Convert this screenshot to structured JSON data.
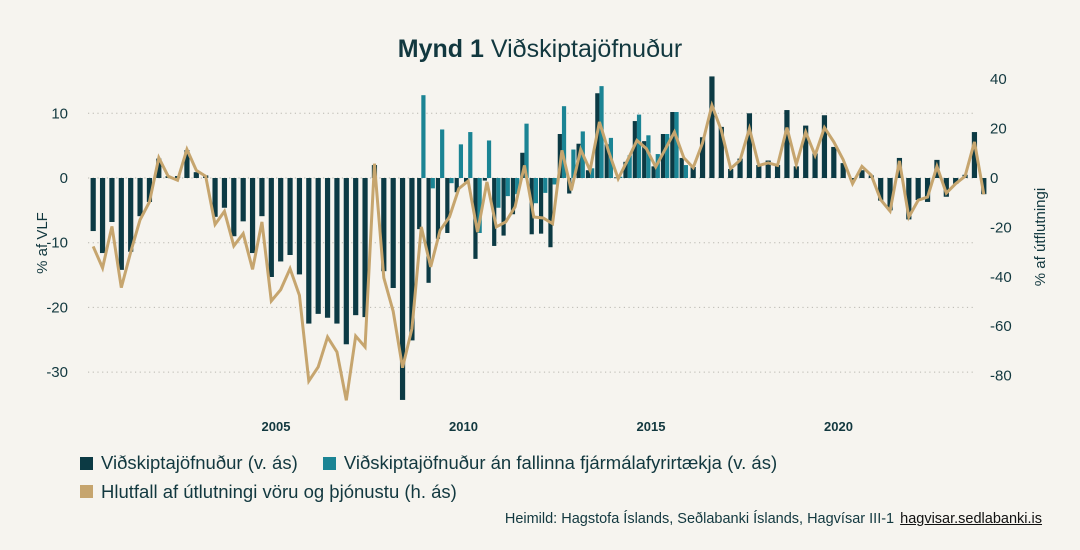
{
  "title": {
    "prefix": "Mynd 1",
    "text": "Viðskiptajöfnuður"
  },
  "colors": {
    "background": "#f6f4ef",
    "series1": "#0c3a44",
    "series2": "#1b8494",
    "series3": "#c6a56e",
    "text": "#12383f"
  },
  "chart_data": {
    "type": "bar+line",
    "title": "Mynd 1 Viðskiptajöfnuður",
    "frequency": "quarterly",
    "start": "2000Q1",
    "end": "2023Q4",
    "x_ticks": [
      "2005",
      "2010",
      "2015",
      "2020"
    ],
    "y_left": {
      "label": "% af VLF",
      "ticks": [
        10,
        0,
        -10,
        -20,
        -30
      ],
      "range": [
        -35,
        15
      ]
    },
    "y_right": {
      "label": "% af útflutningi",
      "ticks": [
        40,
        20,
        0,
        -20,
        -40,
        -60,
        -80
      ],
      "range": [
        -90,
        40
      ]
    },
    "grid": "horizontal dotted",
    "legend_placement": "bottom",
    "series": [
      {
        "name": "Viðskiptajöfnuður (v. ás)",
        "type": "bar",
        "axis": "left",
        "values": [
          -8.2,
          -11.6,
          -6.8,
          -14.2,
          -11.4,
          -5.9,
          -3.7,
          3.0,
          0.3,
          0.3,
          4.3,
          0.9,
          0.4,
          -6.0,
          -4.6,
          -9.0,
          -6.7,
          -11.6,
          -5.9,
          -15.3,
          -12.9,
          -11.9,
          -14.9,
          -22.5,
          -21.0,
          -21.6,
          -22.5,
          -25.7,
          -21.2,
          -21.5,
          2.0,
          -14.4,
          -17.0,
          -34.3,
          -25.1,
          -7.9,
          -16.2,
          -9.4,
          -8.5,
          -2.2,
          -0.6,
          -12.5,
          -0.4,
          -10.5,
          -8.9,
          -5.6,
          3.9,
          -8.7,
          -8.6,
          -10.7,
          6.8,
          -2.4,
          5.3,
          1.2,
          13.1,
          5.2,
          0.1,
          2.5,
          8.8,
          5.7,
          1.8,
          6.8,
          10.2,
          3.1,
          1.7,
          6.3,
          15.7,
          7.9,
          1.4,
          3.0,
          10.0,
          2.0,
          2.7,
          2.0,
          10.5,
          1.8,
          8.1,
          3.8,
          9.7,
          4.8,
          2.3,
          -0.5,
          1.2,
          0.4,
          -3.5,
          -5.0,
          3.1,
          -6.4,
          -3.4,
          -3.7,
          2.8,
          -2.9,
          -0.9,
          0.5,
          7.1,
          -2.5
        ]
      },
      {
        "name": "Viðskiptajöfnuður án fallinna fjármálafyrirtækja (v. ás)",
        "type": "bar",
        "axis": "left",
        "values": [
          null,
          null,
          null,
          null,
          null,
          null,
          null,
          null,
          null,
          null,
          null,
          null,
          null,
          null,
          null,
          null,
          null,
          null,
          null,
          null,
          null,
          null,
          null,
          null,
          null,
          null,
          null,
          null,
          null,
          null,
          null,
          null,
          null,
          null,
          null,
          12.8,
          -1.6,
          7.5,
          -0.8,
          5.2,
          7.1,
          -8.5,
          5.8,
          -4.6,
          -2.8,
          -2.5,
          8.4,
          -3.9,
          -2.3,
          -1.0,
          11.1,
          4.4,
          7.2,
          1.5,
          14.2,
          6.2,
          0.2,
          3.5,
          9.8,
          6.6,
          3.7,
          6.8,
          10.2,
          2.0,
          null,
          null,
          null,
          null,
          null,
          null,
          null,
          null,
          null,
          null,
          null,
          null,
          null,
          null,
          null,
          null,
          null,
          null,
          null,
          null,
          null,
          null,
          null,
          null,
          null,
          null,
          null,
          null,
          null,
          null,
          null,
          null
        ]
      },
      {
        "name": "Hlutfall af útlutningi vöru og þjónustu (h. ás)",
        "type": "line",
        "axis": "right",
        "values": [
          -27.7,
          -36.4,
          -19.6,
          -44.4,
          -30,
          -16.9,
          -9.7,
          8.2,
          0.7,
          -0.9,
          11.6,
          3.1,
          0.7,
          -18.8,
          -13.5,
          -27.5,
          -22.5,
          -37,
          -17.8,
          -49.8,
          -45.2,
          -36.7,
          -47.5,
          -82.2,
          -76.5,
          -64.4,
          -70.4,
          -90,
          -64,
          -68.4,
          5.8,
          -40.4,
          -54,
          -76.8,
          -61,
          -19.8,
          -36,
          -21.2,
          -15.8,
          -4.3,
          -1.2,
          -21.9,
          -1.6,
          -19.8,
          -17.8,
          -11.7,
          5.1,
          -15.8,
          -16.2,
          -18.5,
          11.2,
          -5,
          11.5,
          3.1,
          22.7,
          10.5,
          -0.3,
          7.2,
          15.2,
          11.9,
          4.5,
          11.5,
          18.6,
          8.2,
          4.2,
          14.2,
          29.4,
          19.3,
          3.8,
          7.2,
          20,
          5.1,
          6.1,
          5.1,
          20.4,
          5.5,
          18.6,
          9.2,
          20.4,
          14.6,
          7.4,
          -2.3,
          4.7,
          1.1,
          -8.8,
          -13.4,
          6.9,
          -15.8,
          -9,
          -7.7,
          4.7,
          -6.1,
          -2.3,
          0.7,
          14.6,
          -6.6
        ]
      }
    ]
  },
  "legend": [
    {
      "label": "Viðskiptajöfnuður (v. ás)"
    },
    {
      "label": "Viðskiptajöfnuður án fallinna fjármálafyrirtækja (v. ás)"
    },
    {
      "label": "Hlutfall af útlutningi vöru og þjónustu (h. ás)"
    }
  ],
  "source": {
    "text": "Heimild: Hagstofa Íslands, Seðlabanki Íslands, Hagvísar III-1",
    "link": "hagvisar.sedlabanki.is"
  }
}
